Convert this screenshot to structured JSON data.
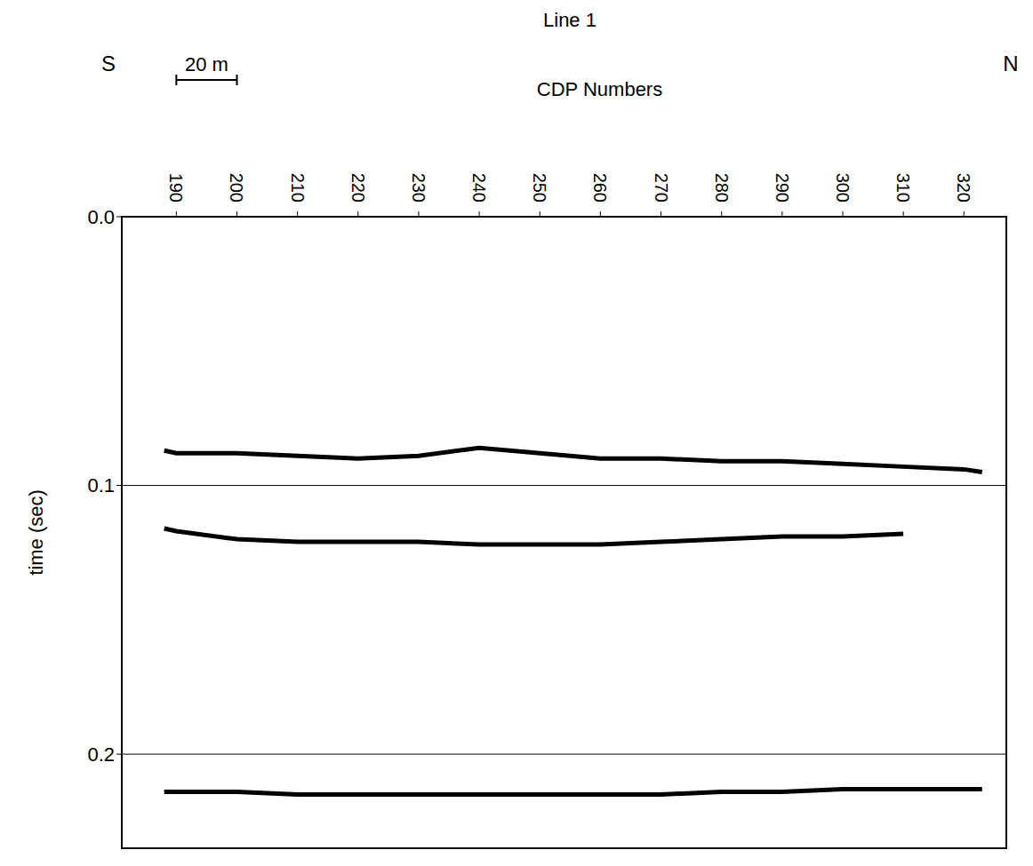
{
  "chart_data": {
    "type": "line",
    "title": "Line 1",
    "side_labels": {
      "left": "S",
      "right": "N"
    },
    "x_label": "CDP Numbers",
    "y_label": "time (sec)",
    "scale_bar": {
      "label": "20 m",
      "from": 190,
      "to": 200
    },
    "x": [
      188,
      190,
      200,
      210,
      220,
      230,
      240,
      250,
      260,
      270,
      280,
      290,
      300,
      310,
      320,
      323
    ],
    "xlim": [
      181,
      327
    ],
    "xticks": [
      190,
      200,
      210,
      220,
      230,
      240,
      250,
      260,
      270,
      280,
      290,
      300,
      310,
      320
    ],
    "ylim": [
      0,
      0.235
    ],
    "yticks": [
      {
        "value": 0,
        "label": "0.0"
      },
      0.1,
      0.2
    ],
    "grid": true,
    "series": [
      {
        "color": "#000000",
        "line_style": "solid",
        "values": [
          0.087,
          0.088,
          0.088,
          0.089,
          0.09,
          0.089,
          0.086,
          0.088,
          0.09,
          0.09,
          0.091,
          0.091,
          0.092,
          0.093,
          0.094,
          0.095
        ]
      },
      {
        "color": "#000000",
        "line_style": "solid",
        "values": [
          0.116,
          0.117,
          0.12,
          0.121,
          0.121,
          0.121,
          0.122,
          0.122,
          0.122,
          0.121,
          0.12,
          0.119,
          0.119,
          0.118,
          null,
          null
        ]
      },
      {
        "color": "#000000",
        "line_style": "solid",
        "values": [
          0.214,
          0.214,
          0.214,
          0.215,
          0.215,
          0.215,
          0.215,
          0.215,
          0.215,
          0.215,
          0.214,
          0.214,
          0.213,
          0.213,
          0.213,
          0.213
        ]
      }
    ]
  }
}
